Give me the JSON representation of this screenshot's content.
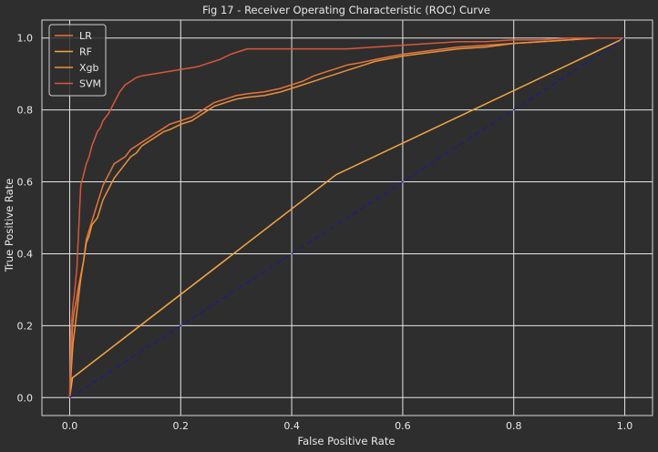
{
  "chart_data": {
    "type": "line",
    "title": "Fig 17 - Receiver Operating Characteristic (ROC) Curve",
    "xlabel": "False Positive Rate",
    "ylabel": "True Positive Rate",
    "xlim": [
      -0.05,
      1.05
    ],
    "ylim": [
      -0.05,
      1.05
    ],
    "xticks": [
      0.0,
      0.2,
      0.4,
      0.6,
      0.8,
      1.0
    ],
    "yticks": [
      0.0,
      0.2,
      0.4,
      0.6,
      0.8,
      1.0
    ],
    "xtick_labels": [
      "0.0",
      "0.2",
      "0.4",
      "0.6",
      "0.8",
      "1.0"
    ],
    "ytick_labels": [
      "0.0",
      "0.2",
      "0.4",
      "0.6",
      "0.8",
      "1.0"
    ],
    "grid": true,
    "legend_position": "top-left",
    "background": "#2e2e2e",
    "series": [
      {
        "name": "LR",
        "color": "#e8743b",
        "x": [
          0,
          0.003,
          0.005,
          0.008,
          0.012,
          0.015,
          0.02,
          0.025,
          0.03,
          0.04,
          0.05,
          0.06,
          0.07,
          0.08,
          0.09,
          0.1,
          0.11,
          0.12,
          0.13,
          0.14,
          0.15,
          0.16,
          0.17,
          0.18,
          0.2,
          0.22,
          0.24,
          0.26,
          0.28,
          0.3,
          0.32,
          0.35,
          0.38,
          0.4,
          0.42,
          0.44,
          0.46,
          0.48,
          0.5,
          0.52,
          0.55,
          0.6,
          0.65,
          0.7,
          0.75,
          0.8,
          0.85,
          0.9,
          0.95,
          1.0
        ],
        "y": [
          0,
          0.1,
          0.2,
          0.24,
          0.27,
          0.3,
          0.34,
          0.38,
          0.44,
          0.49,
          0.54,
          0.59,
          0.62,
          0.65,
          0.66,
          0.67,
          0.69,
          0.7,
          0.71,
          0.72,
          0.73,
          0.74,
          0.75,
          0.76,
          0.77,
          0.78,
          0.8,
          0.82,
          0.83,
          0.84,
          0.845,
          0.85,
          0.86,
          0.87,
          0.88,
          0.895,
          0.905,
          0.915,
          0.925,
          0.93,
          0.94,
          0.955,
          0.965,
          0.975,
          0.98,
          0.985,
          0.99,
          0.995,
          1.0,
          1.0
        ]
      },
      {
        "name": "RF",
        "color": "#f5a641",
        "x": [
          0,
          0.005,
          0.48,
          1.0
        ],
        "y": [
          0,
          0.055,
          0.62,
          1.0
        ]
      },
      {
        "name": "Xgb",
        "color": "#e8923a",
        "x": [
          0,
          0.003,
          0.006,
          0.01,
          0.013,
          0.016,
          0.02,
          0.025,
          0.03,
          0.035,
          0.04,
          0.05,
          0.06,
          0.07,
          0.08,
          0.09,
          0.1,
          0.11,
          0.12,
          0.13,
          0.14,
          0.15,
          0.16,
          0.17,
          0.18,
          0.2,
          0.22,
          0.24,
          0.26,
          0.28,
          0.3,
          0.32,
          0.35,
          0.38,
          0.4,
          0.42,
          0.44,
          0.46,
          0.48,
          0.5,
          0.52,
          0.55,
          0.6,
          0.65,
          0.7,
          0.75,
          0.8,
          0.85,
          0.9,
          0.95,
          1.0
        ],
        "y": [
          0,
          0.08,
          0.15,
          0.2,
          0.24,
          0.28,
          0.33,
          0.38,
          0.43,
          0.45,
          0.48,
          0.5,
          0.55,
          0.58,
          0.61,
          0.63,
          0.65,
          0.67,
          0.68,
          0.7,
          0.71,
          0.72,
          0.73,
          0.74,
          0.745,
          0.76,
          0.77,
          0.79,
          0.81,
          0.82,
          0.83,
          0.835,
          0.84,
          0.85,
          0.86,
          0.87,
          0.88,
          0.89,
          0.9,
          0.91,
          0.92,
          0.935,
          0.95,
          0.96,
          0.97,
          0.975,
          0.985,
          0.99,
          0.995,
          1.0,
          1.0
        ]
      },
      {
        "name": "SVM",
        "color": "#d9573a",
        "x": [
          0,
          0.002,
          0.004,
          0.006,
          0.008,
          0.01,
          0.013,
          0.016,
          0.02,
          0.025,
          0.03,
          0.035,
          0.04,
          0.045,
          0.05,
          0.055,
          0.06,
          0.07,
          0.08,
          0.09,
          0.1,
          0.11,
          0.12,
          0.13,
          0.15,
          0.17,
          0.19,
          0.21,
          0.23,
          0.25,
          0.27,
          0.29,
          0.3,
          0.32,
          0.35,
          0.4,
          0.45,
          0.5,
          0.55,
          0.6,
          0.65,
          0.7,
          0.75,
          0.8,
          0.85,
          0.9,
          0.95,
          1.0
        ],
        "y": [
          0,
          0.18,
          0.22,
          0.26,
          0.28,
          0.31,
          0.36,
          0.46,
          0.59,
          0.62,
          0.65,
          0.67,
          0.7,
          0.72,
          0.74,
          0.75,
          0.77,
          0.79,
          0.82,
          0.85,
          0.87,
          0.88,
          0.89,
          0.895,
          0.9,
          0.905,
          0.91,
          0.915,
          0.92,
          0.93,
          0.94,
          0.955,
          0.96,
          0.97,
          0.97,
          0.97,
          0.97,
          0.97,
          0.975,
          0.98,
          0.985,
          0.99,
          0.99,
          0.995,
          0.995,
          1.0,
          1.0,
          1.0
        ]
      },
      {
        "name": "",
        "color": "#1c1c8c",
        "dashed": true,
        "x": [
          0,
          1
        ],
        "y": [
          0,
          1
        ]
      }
    ]
  }
}
